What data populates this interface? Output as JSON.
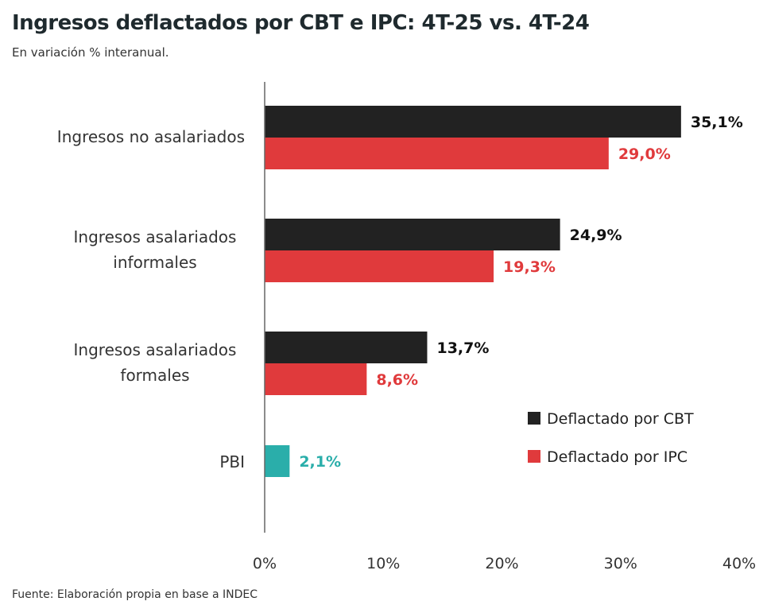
{
  "chart_data": {
    "type": "bar",
    "orientation": "horizontal",
    "title": "Ingresos deflactados por CBT e IPC: 4T-25 vs. 4T-24",
    "subtitle": "En variación % interanual.",
    "source": "Fuente: Elaboración propia en base a INDEC",
    "categories": [
      [
        "Ingresos no asalariados"
      ],
      [
        "Ingresos asalariados",
        "informales"
      ],
      [
        "Ingresos asalariados",
        "formales"
      ],
      [
        "PBI"
      ]
    ],
    "series": [
      {
        "name": "Deflactado por CBT",
        "color": "#222222",
        "values": [
          35.1,
          24.9,
          13.7,
          null
        ],
        "labels": [
          "35,1%",
          "24,9%",
          "13,7%",
          ""
        ]
      },
      {
        "name": "Deflactado por IPC",
        "color": "#e03a3c",
        "values": [
          29.0,
          19.3,
          8.6,
          null
        ],
        "labels": [
          "29,0%",
          "19,3%",
          "8,6%",
          ""
        ]
      }
    ],
    "extra": {
      "category_index": 3,
      "value": 2.1,
      "label": "2,1%",
      "color": "#2aaeaa"
    },
    "xlim": [
      0,
      40
    ],
    "xticks": [
      0,
      10,
      20,
      30,
      40
    ],
    "xtick_labels": [
      "0%",
      "10%",
      "20%",
      "30%",
      "40%"
    ],
    "grid": false,
    "legend_position": "bottom-right"
  }
}
